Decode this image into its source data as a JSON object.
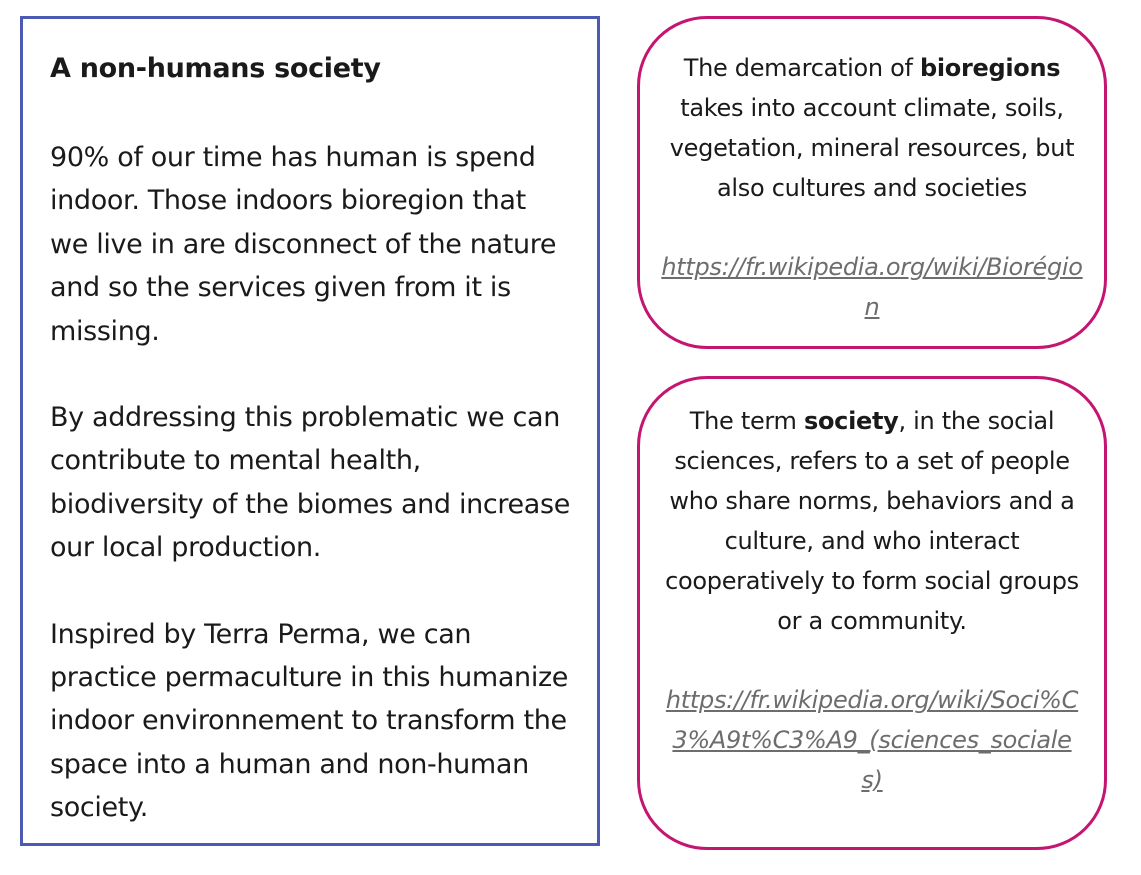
{
  "main": {
    "title": "A non-humans society",
    "paragraph1": "90% of our time has human is spend indoor. Those indoors bioregion that we live in are disconnect of the nature and so the services given from it is missing.",
    "paragraph2": "By addressing this problematic we can contribute to mental health, biodiversity of the biomes and increase our local production.",
    "paragraph3": "Inspired by Terra Perma, we can practice permaculture in this humanize indoor environnement to transform the space into a human and non-human society."
  },
  "notes": [
    {
      "before": "The demarcation of ",
      "term": "bioregions",
      "after": " takes into account climate, soils, vegetation, mineral resources, but also cultures and societies",
      "link": "https://fr.wikipedia.org/wiki/Biorégion"
    },
    {
      "before": "The term ",
      "term": "society",
      "after": ", in the social sciences, refers to a set of people who share norms, behaviors and a culture, and who interact cooperatively to form social groups or a community.",
      "link": "https://fr.wikipedia.org/wiki/Soci%C3%A9t%C3%A9_(sciences_sociales)"
    }
  ],
  "colors": {
    "main_border": "#4b5bb4",
    "note_border": "#c41570",
    "link_text": "#6d6d6d"
  }
}
